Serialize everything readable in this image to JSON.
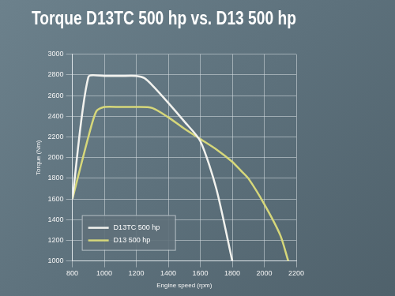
{
  "chart_data": {
    "type": "line",
    "title": "Torque D13TC 500 hp vs. D13 500 hp",
    "x_label": "Engine speed (rpm)",
    "y_label": "Torque (Nm)",
    "series": [
      {
        "name": "D13TC 500 hp",
        "color": "#f2f2ee",
        "x": [
          800,
          900,
          1000,
          1100,
          1200,
          1250,
          1300,
          1400,
          1500,
          1600,
          1700,
          1800
        ],
        "values": [
          1600,
          2780,
          2790,
          2790,
          2790,
          2770,
          2700,
          2530,
          2350,
          2160,
          1700,
          1000
        ]
      },
      {
        "name": "D13 500 hp",
        "color": "#d6d77a",
        "x": [
          800,
          900,
          950,
          1000,
          1100,
          1200,
          1300,
          1400,
          1500,
          1600,
          1700,
          1800,
          1850,
          1900,
          2000,
          2100,
          2150
        ],
        "values": [
          1600,
          2200,
          2450,
          2490,
          2490,
          2490,
          2480,
          2390,
          2280,
          2180,
          2080,
          1960,
          1880,
          1800,
          1550,
          1250,
          1000
        ]
      }
    ],
    "xlim": [
      800,
      2200
    ],
    "xticks": [
      800,
      1000,
      1200,
      1400,
      1600,
      1800,
      2000,
      2200
    ],
    "ylim": [
      1000,
      3000
    ],
    "yticks": [
      1000,
      1200,
      1400,
      1600,
      1800,
      2000,
      2200,
      2400,
      2600,
      2800,
      3000
    ],
    "grid": true,
    "legend": "lower left"
  }
}
